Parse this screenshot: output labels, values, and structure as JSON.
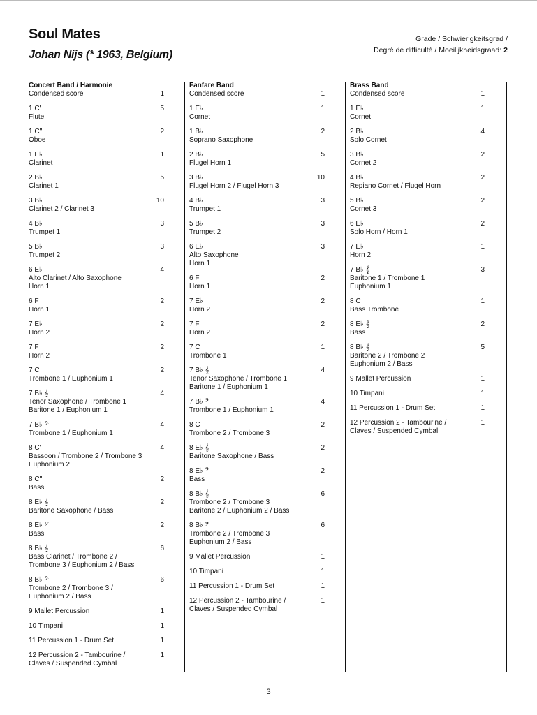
{
  "title": "Soul Mates",
  "composer": "Johan Nijs (* 1963, Belgium)",
  "grade": {
    "line1": "Grade / Schwierigkeitsgrad /",
    "line2": "Degré de difficulté / Moeilijkheidsgraad:",
    "value": "2"
  },
  "columns": [
    {
      "heading": "Concert Band / Harmonie",
      "entries": [
        {
          "lines": [
            "Condensed score"
          ],
          "qty": "1"
        },
        {
          "lines": [
            "1 C'",
            "Flute"
          ],
          "qty": "5"
        },
        {
          "lines": [
            "1 C''",
            "Oboe"
          ],
          "qty": "2"
        },
        {
          "lines": [
            "1 E♭",
            "Clarinet"
          ],
          "qty": "1"
        },
        {
          "lines": [
            "2 B♭",
            "Clarinet 1"
          ],
          "qty": "5"
        },
        {
          "lines": [
            "3 B♭",
            "Clarinet 2 / Clarinet 3"
          ],
          "qty": "10"
        },
        {
          "lines": [
            "4 B♭",
            "Trumpet 1"
          ],
          "qty": "3"
        },
        {
          "lines": [
            "5 B♭",
            "Trumpet 2"
          ],
          "qty": "3"
        },
        {
          "lines": [
            "6 E♭",
            "Alto Clarinet / Alto Saxophone",
            "Horn 1"
          ],
          "qty": "4"
        },
        {
          "lines": [
            "6 F",
            "Horn 1"
          ],
          "qty": "2"
        },
        {
          "lines": [
            "7 E♭",
            "Horn 2"
          ],
          "qty": "2"
        },
        {
          "lines": [
            "7 F",
            "Horn 2"
          ],
          "qty": "2"
        },
        {
          "lines": [
            "7 C",
            "Trombone 1 / Euphonium 1"
          ],
          "qty": "2"
        },
        {
          "lines": [
            "7 B♭ 𝄞",
            "Tenor Saxophone / Trombone 1",
            "Baritone 1 / Euphonium 1"
          ],
          "qty": "4"
        },
        {
          "lines": [
            "7 B♭ 𝄢",
            "Trombone 1 / Euphonium 1"
          ],
          "qty": "4"
        },
        {
          "lines": [
            "8 C'",
            "Bassoon / Trombone 2 / Trombone 3",
            "Euphonium 2"
          ],
          "qty": "4"
        },
        {
          "lines": [
            "8 C''",
            "Bass"
          ],
          "qty": "2"
        },
        {
          "lines": [
            "8 E♭ 𝄞",
            "Baritone Saxophone / Bass"
          ],
          "qty": "2"
        },
        {
          "lines": [
            "8 E♭ 𝄢",
            "Bass"
          ],
          "qty": "2"
        },
        {
          "lines": [
            "8 B♭ 𝄞",
            "Bass Clarinet / Trombone 2 /",
            "Trombone 3  / Euphonium 2 / Bass"
          ],
          "qty": "6"
        },
        {
          "lines": [
            "8 B♭ 𝄢",
            "Trombone 2 / Trombone 3 /",
            "Euphonium 2 / Bass"
          ],
          "qty": "6"
        },
        {
          "lines": [
            "9 Mallet Percussion"
          ],
          "qty": "1"
        },
        {
          "lines": [
            "10 Timpani"
          ],
          "qty": "1"
        },
        {
          "lines": [
            "11 Percussion 1 - Drum Set"
          ],
          "qty": "1"
        },
        {
          "lines": [
            "12 Percussion 2 - Tambourine /",
            "Claves / Suspended Cymbal"
          ],
          "qty": "1"
        }
      ]
    },
    {
      "heading": "Fanfare Band",
      "entries": [
        {
          "lines": [
            "Condensed score"
          ],
          "qty": "1"
        },
        {
          "lines": [
            "1 E♭",
            "Cornet"
          ],
          "qty": "1"
        },
        {
          "lines": [
            "1 B♭",
            "Soprano Saxophone"
          ],
          "qty": "2"
        },
        {
          "lines": [
            "2 B♭",
            "Flugel Horn 1"
          ],
          "qty": "5"
        },
        {
          "lines": [
            "3 B♭",
            "Flugel Horn 2 / Flugel Horn 3"
          ],
          "qty": "10"
        },
        {
          "lines": [
            "4 B♭",
            "Trumpet 1"
          ],
          "qty": "3"
        },
        {
          "lines": [
            "5 B♭",
            "Trumpet 2"
          ],
          "qty": "3"
        },
        {
          "lines": [
            "6 E♭",
            "Alto Saxophone",
            "Horn 1"
          ],
          "qty": "3"
        },
        {
          "lines": [
            "6 F",
            "Horn 1"
          ],
          "qty": "2"
        },
        {
          "lines": [
            "7 E♭",
            "Horn 2"
          ],
          "qty": "2"
        },
        {
          "lines": [
            "7 F",
            "Horn 2"
          ],
          "qty": "2"
        },
        {
          "lines": [
            "7 C",
            "Trombone 1"
          ],
          "qty": "1"
        },
        {
          "lines": [
            "7 B♭ 𝄞",
            "Tenor Saxophone / Trombone 1",
            "Baritone 1 / Euphonium 1"
          ],
          "qty": "4"
        },
        {
          "lines": [
            "7 B♭ 𝄢",
            "Trombone 1 / Euphonium 1"
          ],
          "qty": "4"
        },
        {
          "lines": [
            "8 C",
            "Trombone 2 / Trombone 3"
          ],
          "qty": "2"
        },
        {
          "lines": [
            "8 E♭ 𝄞",
            "Baritone Saxophone / Bass"
          ],
          "qty": "2"
        },
        {
          "lines": [
            "8 E♭ 𝄢",
            "Bass"
          ],
          "qty": "2"
        },
        {
          "lines": [
            "8 B♭ 𝄞",
            "Trombone 2 / Trombone 3",
            "Baritone 2 / Euphonium 2 / Bass"
          ],
          "qty": "6"
        },
        {
          "lines": [
            "8 B♭ 𝄢",
            "Trombone 2 / Trombone 3",
            "Euphonium 2 / Bass"
          ],
          "qty": "6"
        },
        {
          "lines": [
            "9 Mallet Percussion"
          ],
          "qty": "1"
        },
        {
          "lines": [
            "10 Timpani"
          ],
          "qty": "1"
        },
        {
          "lines": [
            "11 Percussion 1 - Drum Set"
          ],
          "qty": "1"
        },
        {
          "lines": [
            "12 Percussion 2 - Tambourine /",
            "Claves / Suspended Cymbal"
          ],
          "qty": "1"
        }
      ]
    },
    {
      "heading": "Brass Band",
      "entries": [
        {
          "lines": [
            "Condensed score"
          ],
          "qty": "1"
        },
        {
          "lines": [
            "1 E♭",
            "Cornet"
          ],
          "qty": "1"
        },
        {
          "lines": [
            "2 B♭",
            "Solo Cornet"
          ],
          "qty": "4"
        },
        {
          "lines": [
            "3 B♭",
            "Cornet 2"
          ],
          "qty": "2"
        },
        {
          "lines": [
            "4 B♭",
            "Repiano Cornet / Flugel Horn"
          ],
          "qty": "2"
        },
        {
          "lines": [
            "5 B♭",
            "Cornet 3"
          ],
          "qty": "2"
        },
        {
          "lines": [
            "6 E♭",
            "Solo Horn / Horn 1"
          ],
          "qty": "2"
        },
        {
          "lines": [
            "7 E♭",
            "Horn 2"
          ],
          "qty": "1"
        },
        {
          "lines": [
            "7 B♭ 𝄞",
            "Baritone 1 / Trombone 1",
            "Euphonium 1"
          ],
          "qty": "3"
        },
        {
          "lines": [
            "8 C",
            "Bass Trombone"
          ],
          "qty": "1"
        },
        {
          "lines": [
            "8 E♭ 𝄞",
            "Bass"
          ],
          "qty": "2"
        },
        {
          "lines": [
            "8 B♭ 𝄞",
            "Baritone 2 / Trombone 2",
            "Euphonium 2 / Bass"
          ],
          "qty": "5"
        },
        {
          "lines": [
            "9 Mallet Percussion"
          ],
          "qty": "1"
        },
        {
          "lines": [
            "10 Timpani"
          ],
          "qty": "1"
        },
        {
          "lines": [
            "11 Percussion 1 - Drum Set"
          ],
          "qty": "1"
        },
        {
          "lines": [
            "12 Percussion 2 - Tambourine /",
            "Claves / Suspended Cymbal"
          ],
          "qty": "1"
        }
      ]
    }
  ],
  "page_number": "3"
}
